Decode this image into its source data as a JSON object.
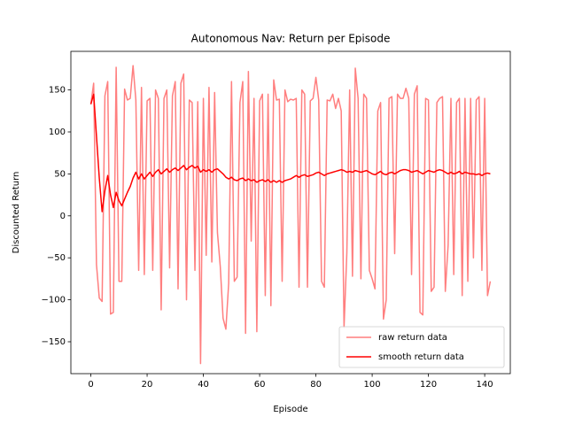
{
  "chart_data": {
    "type": "line",
    "title": "Autonomous Nav: Return per Episode",
    "x_label": "Episode",
    "y_label": "Discounted Return",
    "x": [
      0,
      1,
      2,
      3,
      4,
      5,
      6,
      7,
      8,
      9,
      10,
      11,
      12,
      13,
      14,
      15,
      16,
      17,
      18,
      19,
      20,
      21,
      22,
      23,
      24,
      25,
      26,
      27,
      28,
      29,
      30,
      31,
      32,
      33,
      34,
      35,
      36,
      37,
      38,
      39,
      40,
      41,
      42,
      43,
      44,
      45,
      46,
      47,
      48,
      49,
      50,
      51,
      52,
      53,
      54,
      55,
      56,
      57,
      58,
      59,
      60,
      61,
      62,
      63,
      64,
      65,
      66,
      67,
      68,
      69,
      70,
      71,
      72,
      73,
      74,
      75,
      76,
      77,
      78,
      79,
      80,
      81,
      82,
      83,
      84,
      85,
      86,
      87,
      88,
      89,
      90,
      91,
      92,
      93,
      94,
      95,
      96,
      97,
      98,
      99,
      100,
      101,
      102,
      103,
      104,
      105,
      106,
      107,
      108,
      109,
      110,
      111,
      112,
      113,
      114,
      115,
      116,
      117,
      118,
      119,
      120,
      121,
      122,
      123,
      124,
      125,
      126,
      127,
      128,
      129,
      130,
      131,
      132,
      133,
      134,
      135,
      136,
      137,
      138,
      139,
      140,
      141,
      142
    ],
    "series": [
      {
        "name": "raw return data",
        "color": "#ff7f7f",
        "values": [
          133,
          158,
          -58,
          -98,
          -102,
          143,
          160,
          -117,
          -115,
          177,
          -78,
          -78,
          151,
          138,
          140,
          179,
          138,
          -65,
          153,
          -70,
          137,
          140,
          -65,
          150,
          140,
          -112,
          140,
          150,
          -62,
          143,
          160,
          -87,
          158,
          169,
          -100,
          138,
          135,
          -65,
          136,
          -176,
          140,
          -47,
          153,
          -55,
          147,
          -20,
          -60,
          -122,
          -135,
          -80,
          160,
          -78,
          -73,
          135,
          160,
          -140,
          172,
          -30,
          140,
          -138,
          137,
          145,
          -95,
          145,
          -107,
          162,
          138,
          139,
          -78,
          150,
          136,
          139,
          138,
          140,
          -85,
          150,
          145,
          -85,
          137,
          140,
          165,
          138,
          -78,
          -85,
          138,
          137,
          145,
          128,
          140,
          125,
          -133,
          -44,
          150,
          -72,
          176,
          140,
          -75,
          145,
          140,
          -65,
          -75,
          -87,
          125,
          135,
          -123,
          -100,
          140,
          142,
          -45,
          145,
          140,
          140,
          152,
          140,
          -70,
          145,
          155,
          -115,
          -118,
          140,
          138,
          -90,
          -85,
          135,
          140,
          142,
          -90,
          -35,
          140,
          -70,
          135,
          140,
          -95,
          140,
          -78,
          140,
          -50,
          138,
          142,
          -65,
          140,
          -95,
          -78
        ]
      },
      {
        "name": "smooth return data",
        "color": "#ff0000",
        "values": [
          133,
          145,
          95,
          45,
          5,
          30,
          48,
          25,
          10,
          28,
          18,
          12,
          20,
          28,
          35,
          45,
          52,
          44,
          50,
          44,
          48,
          52,
          47,
          52,
          55,
          50,
          53,
          56,
          52,
          55,
          57,
          54,
          57,
          60,
          55,
          58,
          60,
          57,
          59,
          52,
          55,
          53,
          55,
          52,
          55,
          56,
          53,
          50,
          46,
          44,
          46,
          43,
          42,
          44,
          45,
          42,
          44,
          42,
          43,
          40,
          42,
          43,
          41,
          43,
          40,
          42,
          40,
          42,
          40,
          42,
          43,
          44,
          46,
          48,
          46,
          48,
          49,
          47,
          48,
          49,
          51,
          52,
          50,
          48,
          50,
          51,
          52,
          53,
          54,
          55,
          54,
          52,
          53,
          52,
          54,
          53,
          52,
          53,
          54,
          52,
          50,
          49,
          51,
          53,
          50,
          49,
          51,
          52,
          50,
          52,
          54,
          55,
          55,
          54,
          52,
          53,
          54,
          52,
          50,
          52,
          54,
          53,
          52,
          54,
          55,
          54,
          52,
          50,
          52,
          50,
          51,
          53,
          50,
          52,
          51,
          50,
          50,
          49,
          50,
          48,
          50,
          51,
          50
        ]
      }
    ],
    "xlim": [
      -7.1,
      149.1
    ],
    "ylim": [
      -188,
      196
    ],
    "xticks": [
      0,
      20,
      40,
      60,
      80,
      100,
      120,
      140
    ],
    "yticks": [
      {
        "value": -150,
        "label": "−150"
      },
      {
        "value": -100,
        "label": "−100"
      },
      {
        "value": -50,
        "label": "−50"
      },
      0,
      50,
      100,
      150
    ],
    "legend": "lower right",
    "grid": false
  }
}
